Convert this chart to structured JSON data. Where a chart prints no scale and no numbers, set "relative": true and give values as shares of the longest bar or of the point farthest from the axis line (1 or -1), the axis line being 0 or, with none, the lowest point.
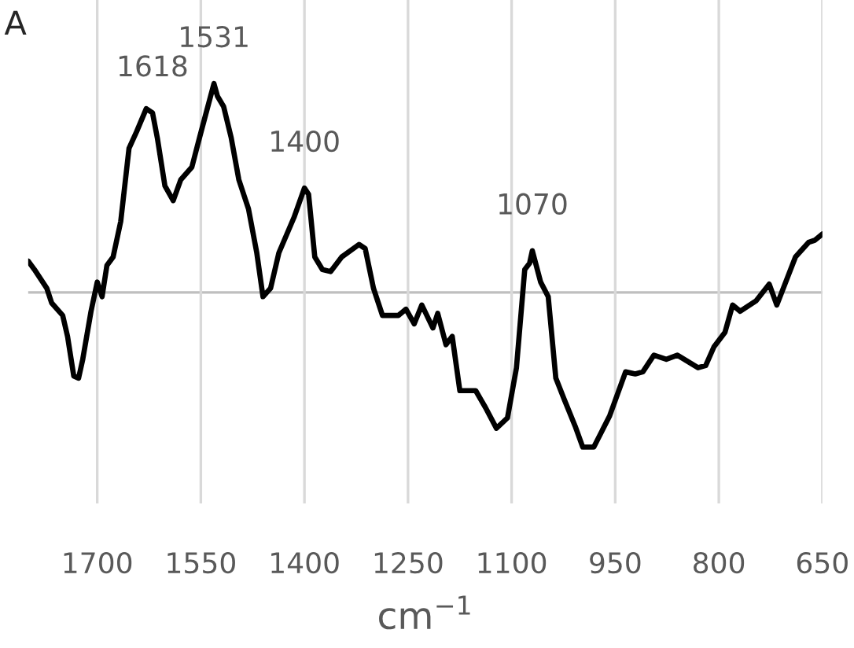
{
  "chart_data": {
    "type": "line",
    "relative": true,
    "xlabel": "cm$^{−1}$",
    "xlim": [
      1800,
      650
    ],
    "xticks": [
      1700,
      1550,
      1400,
      1250,
      1100,
      950,
      800,
      650
    ],
    "grid": "x",
    "tick_labels": "x",
    "annotations": [
      "A",
      {
        "text": "1618",
        "x": 1620,
        "y": 0.86
      },
      {
        "text": "1531",
        "x": 1531,
        "y": 1
      },
      {
        "text": "1400",
        "x": 1400,
        "y": 0.5
      },
      {
        "text": "1070",
        "x": 1070,
        "y": 0.2
      }
    ],
    "series": [
      {
        "color": "#000000",
        "x": [
          1800,
          1791,
          1773,
          1766,
          1750,
          1743,
          1734,
          1727,
          1721,
          1709,
          1700,
          1693,
          1686,
          1677,
          1666,
          1654,
          1643,
          1629,
          1620,
          1613,
          1602,
          1590,
          1579,
          1563,
          1552,
          1531,
          1526,
          1517,
          1506,
          1495,
          1481,
          1469,
          1460,
          1449,
          1437,
          1415,
          1400,
          1394,
          1385,
          1374,
          1362,
          1346,
          1321,
          1312,
          1300,
          1287,
          1264,
          1253,
          1241,
          1230,
          1214,
          1207,
          1195,
          1186,
          1175,
          1152,
          1138,
          1122,
          1106,
          1093,
          1081,
          1074,
          1070,
          1058,
          1047,
          1036,
          1024,
          1008,
          997,
          981,
          958,
          935,
          921,
          910,
          894,
          876,
          860,
          830,
          819,
          807,
          791,
          780,
          769,
          746,
          727,
          716,
          689,
          670,
          661,
          650
        ],
        "values": [
          0.15,
          0.11,
          0.02,
          -0.05,
          -0.11,
          -0.21,
          -0.4,
          -0.41,
          -0.32,
          -0.09,
          0.05,
          -0.02,
          0.13,
          0.17,
          0.34,
          0.69,
          0.77,
          0.88,
          0.86,
          0.74,
          0.51,
          0.44,
          0.54,
          0.6,
          0.74,
          1,
          0.94,
          0.89,
          0.74,
          0.54,
          0.4,
          0.19,
          -0.02,
          0.02,
          0.19,
          0.36,
          0.5,
          0.47,
          0.17,
          0.11,
          0.1,
          0.17,
          0.23,
          0.21,
          0.02,
          -0.11,
          -0.11,
          -0.08,
          -0.15,
          -0.06,
          -0.17,
          -0.1,
          -0.25,
          -0.21,
          -0.47,
          -0.47,
          -0.55,
          -0.65,
          -0.6,
          -0.36,
          0.11,
          0.14,
          0.2,
          0.05,
          -0.02,
          -0.41,
          -0.51,
          -0.64,
          -0.74,
          -0.74,
          -0.59,
          -0.38,
          -0.39,
          -0.38,
          -0.3,
          -0.32,
          -0.3,
          -0.36,
          -0.35,
          -0.26,
          -0.19,
          -0.06,
          -0.09,
          -0.04,
          0.04,
          -0.06,
          0.17,
          0.24,
          0.25,
          0.28
        ]
      }
    ]
  }
}
